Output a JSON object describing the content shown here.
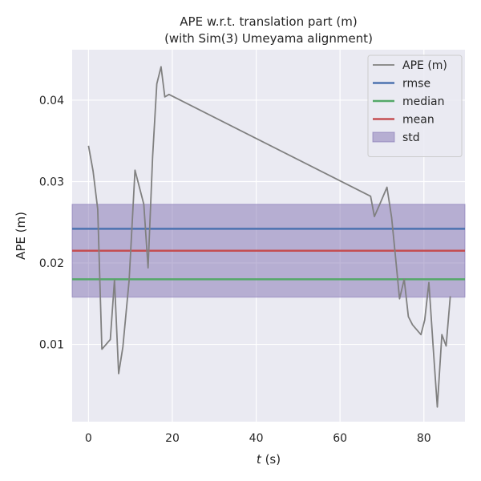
{
  "chart_data": {
    "type": "line",
    "title": "APE w.r.t. translation part (m)",
    "subtitle": "(with Sim(3) Umeyama alignment)",
    "xlabel_var": "t",
    "xlabel_unit": " (s)",
    "ylabel": "APE (m)",
    "xlim": [
      -3.9,
      89.8
    ],
    "ylim": [
      0.0005,
      0.0462
    ],
    "xticks": [
      0,
      20,
      40,
      60,
      80
    ],
    "yticks": [
      0.01,
      0.02,
      0.03,
      0.04
    ],
    "ytick_labels": [
      "0.01",
      "0.02",
      "0.03",
      "0.04"
    ],
    "grid": true,
    "legend_position": "top-right",
    "colors": {
      "background": "#eaeaf2",
      "grid": "#ffffff",
      "ape": "#808080",
      "rmse": "#4c72b0",
      "median": "#55a868",
      "mean": "#c44e52",
      "std": "#8172b2"
    },
    "legend": [
      {
        "key": "ape",
        "label": "APE (m)",
        "kind": "line"
      },
      {
        "key": "rmse",
        "label": "rmse",
        "kind": "line"
      },
      {
        "key": "median",
        "label": "median",
        "kind": "line"
      },
      {
        "key": "mean",
        "label": "mean",
        "kind": "line"
      },
      {
        "key": "std",
        "label": "std",
        "kind": "patch"
      }
    ],
    "stats": {
      "rmse": 0.0242,
      "median": 0.018,
      "mean": 0.0215,
      "std_band": [
        0.0158,
        0.0272
      ]
    },
    "series": [
      {
        "name": "APE (m)",
        "points": [
          [
            0.0,
            0.0344
          ],
          [
            1.1,
            0.0313
          ],
          [
            2.2,
            0.0266
          ],
          [
            3.2,
            0.0094
          ],
          [
            5.2,
            0.0106
          ],
          [
            6.2,
            0.0179
          ],
          [
            7.2,
            0.0064
          ],
          [
            8.2,
            0.0097
          ],
          [
            9.7,
            0.0179
          ],
          [
            11.1,
            0.0314
          ],
          [
            13.2,
            0.0272
          ],
          [
            14.2,
            0.0194
          ],
          [
            15.3,
            0.0331
          ],
          [
            16.3,
            0.042
          ],
          [
            17.3,
            0.0441
          ],
          [
            18.2,
            0.0404
          ],
          [
            19.2,
            0.0407
          ],
          [
            67.3,
            0.0282
          ],
          [
            68.2,
            0.0257
          ],
          [
            69.3,
            0.027
          ],
          [
            71.2,
            0.0293
          ],
          [
            72.3,
            0.0256
          ],
          [
            73.3,
            0.0204
          ],
          [
            74.2,
            0.0156
          ],
          [
            75.3,
            0.018
          ],
          [
            76.3,
            0.0134
          ],
          [
            77.3,
            0.0124
          ],
          [
            79.3,
            0.0112
          ],
          [
            80.2,
            0.013
          ],
          [
            81.2,
            0.0176
          ],
          [
            82.3,
            0.009
          ],
          [
            83.2,
            0.0023
          ],
          [
            84.3,
            0.0112
          ],
          [
            85.3,
            0.0098
          ],
          [
            86.3,
            0.0159
          ]
        ]
      }
    ]
  }
}
